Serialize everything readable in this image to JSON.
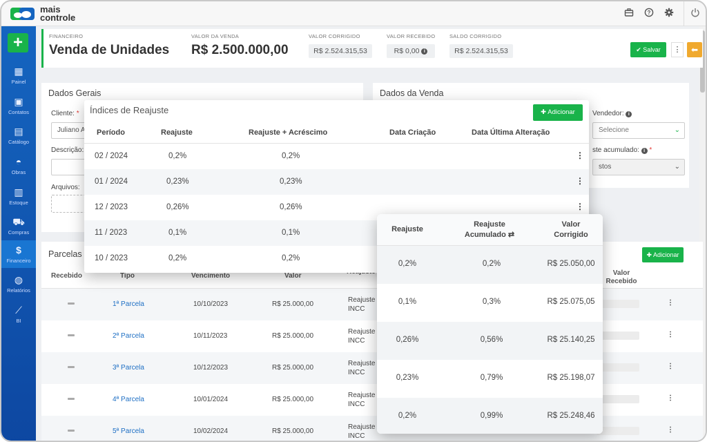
{
  "app": {
    "logo_line1": "mais",
    "logo_line2": "controle"
  },
  "topbar_icons": [
    "briefcase-icon",
    "help-icon",
    "gear-icon",
    "power-icon"
  ],
  "sidebar": {
    "add_label": "+",
    "items": [
      {
        "label": "Painel",
        "icon": "grid-icon"
      },
      {
        "label": "Contatos",
        "icon": "contact-icon"
      },
      {
        "label": "Catálogo",
        "icon": "book-icon"
      },
      {
        "label": "Obras",
        "icon": "helmet-icon"
      },
      {
        "label": "Estoque",
        "icon": "boxes-icon"
      },
      {
        "label": "Compras",
        "icon": "cart-icon"
      },
      {
        "label": "Financeiro",
        "icon": "dollar-icon"
      },
      {
        "label": "Relatórios",
        "icon": "reports-icon"
      },
      {
        "label": "BI",
        "icon": "chart-icon"
      }
    ]
  },
  "header": {
    "section": "FINANCEIRO",
    "title": "Venda de Unidades",
    "valor_venda_label": "VALOR DA VENDA",
    "valor_venda": "R$ 2.500.000,00",
    "valor_corrigido_label": "VALOR CORRIGIDO",
    "valor_corrigido": "R$ 2.524.315,53",
    "valor_recebido_label": "VALOR RECEBIDO",
    "valor_recebido": "R$ 0,00",
    "saldo_corrigido_label": "SALDO CORRIGIDO",
    "saldo_corrigido": "R$ 2.524.315,53",
    "save_label": "Salvar"
  },
  "dados_gerais": {
    "title": "Dados Gerais",
    "cliente_label": "Cliente:",
    "cliente_value": "Juliano A",
    "descricao_label": "Descrição:",
    "arquivos_label": "Arquivos:"
  },
  "dados_venda": {
    "title": "Dados da Venda",
    "vendedor_label": "Vendedor:",
    "vendedor_placeholder": "Selecione",
    "reajuste_label": "ste acumulado:",
    "reajuste_value": "stos"
  },
  "parcelas": {
    "title": "Parcelas",
    "add_label": "Adicionar",
    "headers": [
      "Recebido",
      "Tipo",
      "Vencimento",
      "Valor",
      "Reajuste",
      "Valor Recebido"
    ],
    "rows": [
      {
        "tipo": "1ª Parcela",
        "vencimento": "10/10/2023",
        "valor": "R$ 25.000,00",
        "reajuste_l1": "Reajuste",
        "reajuste_l2": "INCC"
      },
      {
        "tipo": "2ª Parcela",
        "vencimento": "10/11/2023",
        "valor": "R$ 25.000,00",
        "reajuste_l1": "Reajuste",
        "reajuste_l2": "INCC"
      },
      {
        "tipo": "3ª Parcela",
        "vencimento": "10/12/2023",
        "valor": "R$ 25.000,00",
        "reajuste_l1": "Reajuste",
        "reajuste_l2": "INCC"
      },
      {
        "tipo": "4ª Parcela",
        "vencimento": "10/01/2024",
        "valor": "R$ 25.000,00",
        "reajuste_l1": "Reajuste",
        "reajuste_l2": "INCC"
      },
      {
        "tipo": "5ª Parcela",
        "vencimento": "10/02/2024",
        "valor": "R$ 25.000,00",
        "reajuste_l1": "Reajuste",
        "reajuste_l2": "INCC"
      }
    ]
  },
  "indices": {
    "title": "Índices de Reajuste",
    "add_label": "Adicionar",
    "headers": [
      "Período",
      "Reajuste",
      "Reajuste + Acréscimo",
      "Data Criação",
      "Data Última Alteração"
    ],
    "rows": [
      {
        "periodo": "02 / 2024",
        "reajuste": "0,2%",
        "acrescimo": "0,2%"
      },
      {
        "periodo": "01 / 2024",
        "reajuste": "0,23%",
        "acrescimo": "0,23%"
      },
      {
        "periodo": "12 / 2023",
        "reajuste": "0,26%",
        "acrescimo": "0,26%"
      },
      {
        "periodo": "11 / 2023",
        "reajuste": "0,1%",
        "acrescimo": "0,1%"
      },
      {
        "periodo": "10 / 2023",
        "reajuste": "0,2%",
        "acrescimo": "0,2%"
      }
    ]
  },
  "reajuste_popup": {
    "headers": {
      "reajuste": "Reajuste",
      "acumulado_l1": "Reajuste",
      "acumulado_l2": "Acumulado",
      "corrigido_l1": "Valor",
      "corrigido_l2": "Corrigido"
    },
    "rows": [
      {
        "reajuste": "0,2%",
        "acumulado": "0,2%",
        "corrigido": "R$ 25.050,00"
      },
      {
        "reajuste": "0,1%",
        "acumulado": "0,3%",
        "corrigido": "R$ 25.075,05"
      },
      {
        "reajuste": "0,26%",
        "acumulado": "0,56%",
        "corrigido": "R$ 25.140,25"
      },
      {
        "reajuste": "0,23%",
        "acumulado": "0,79%",
        "corrigido": "R$ 25.198,07"
      },
      {
        "reajuste": "0,2%",
        "acumulado": "0,99%",
        "corrigido": "R$ 25.248,46"
      }
    ]
  },
  "colors": {
    "brand_green": "#19b34a",
    "sidebar_blue": "#1565c0",
    "link_blue": "#1e6fc4",
    "back_orange": "#f0a92e"
  }
}
